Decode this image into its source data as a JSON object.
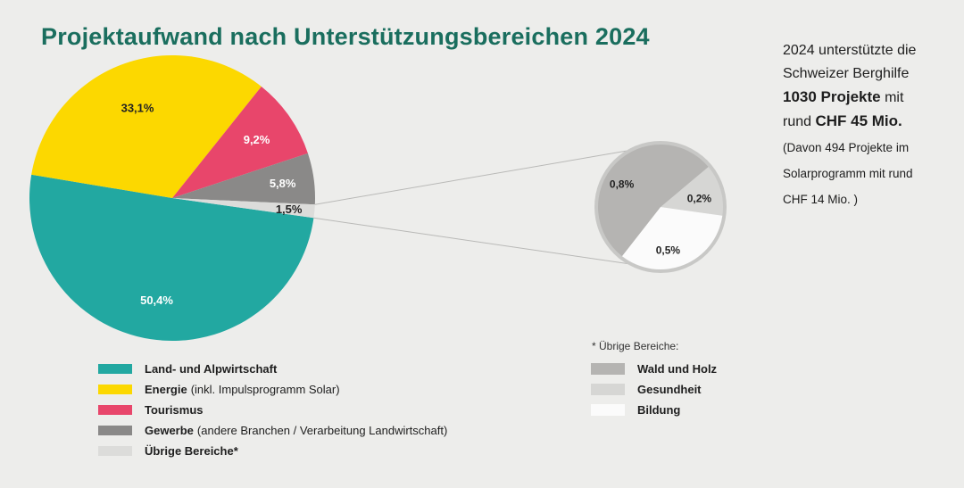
{
  "chart_data": {
    "type": "pie",
    "title": "Projektaufwand nach Unterstützungsbereichen 2024",
    "slices": [
      {
        "name": "Land- und Alpwirtschaft",
        "note": "",
        "value": 50.4,
        "label": "50,4%",
        "color": "#22a8a1"
      },
      {
        "name": "Energie",
        "note": "(inkl. Impulsprogramm Solar)",
        "value": 33.1,
        "label": "33,1%",
        "color": "#fcd800"
      },
      {
        "name": "Tourismus",
        "note": "",
        "value": 9.2,
        "label": "9,2%",
        "color": "#e8466b"
      },
      {
        "name": "Gewerbe",
        "note": "(andere Branchen / Verarbeitung Landwirtschaft)",
        "value": 5.8,
        "label": "5,8%",
        "color": "#8a8988"
      },
      {
        "name": "Übrige Bereiche*",
        "note": "",
        "value": 1.5,
        "label": "1,5%",
        "color": "#dcdcda"
      }
    ],
    "sub_pie": {
      "title": "* Übrige Bereiche:",
      "slices": [
        {
          "name": "Wald und Holz",
          "value": 0.8,
          "label": "0,8%",
          "color": "#b5b4b2"
        },
        {
          "name": "Gesundheit",
          "value": 0.2,
          "label": "0,2%",
          "color": "#d6d6d4"
        },
        {
          "name": "Bildung",
          "value": 0.5,
          "label": "0,5%",
          "color": "#fbfbfb"
        }
      ]
    },
    "legend": "bottom"
  },
  "info": {
    "line1": "2024 unterstützte die",
    "line2": "Schweizer Berghilfe",
    "projects_bold": "1030  Projekte",
    "projects_rest": " mit",
    "amount_pre": "rund ",
    "amount_bold": "CHF 45 Mio.",
    "note1": "(Davon 494 Projekte im",
    "note2": "Solarprogramm mit rund",
    "note3": "CHF 14 Mio. )"
  }
}
